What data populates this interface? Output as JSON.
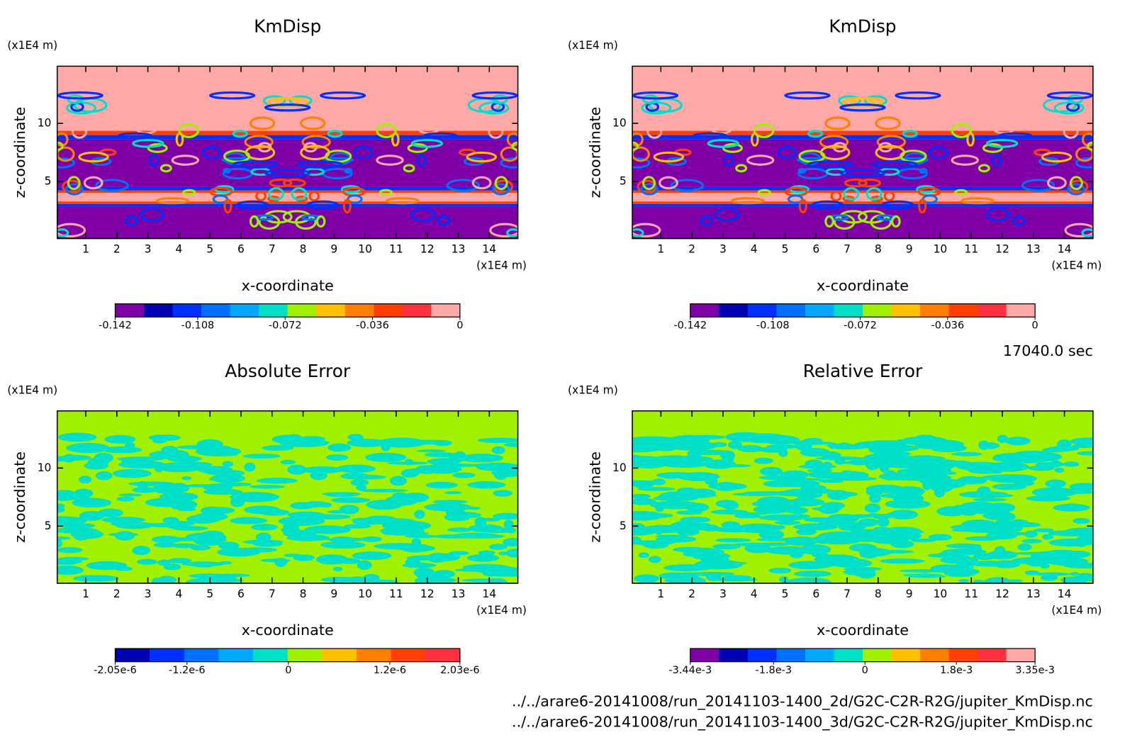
{
  "chart_data": [
    {
      "type": "contour",
      "title": "KmDisp",
      "xlabel": "x-coordinate",
      "ylabel": "z-coordinate",
      "x_unit": "(x1E4 m)",
      "y_unit": "(x1E4 m)",
      "xlim": [
        0.08,
        14.92
      ],
      "ylim": [
        0.08,
        14.92
      ],
      "xticks": [
        1,
        2,
        3,
        4,
        5,
        6,
        7,
        8,
        9,
        10,
        11,
        12,
        13,
        14
      ],
      "yticks": [
        5,
        10
      ],
      "colorbar": {
        "lim": [
          -0.142,
          0
        ],
        "ticks": [
          -0.142,
          -0.108,
          -0.072,
          -0.036,
          0
        ],
        "colors": [
          "#8000a8",
          "#0000b0",
          "#0030ff",
          "#0070ff",
          "#00a8ff",
          "#00e0c8",
          "#a0f000",
          "#ffc000",
          "#ff8000",
          "#ff4000",
          "#ff3040",
          "#ffa8a8"
        ]
      }
    },
    {
      "type": "contour",
      "title": "KmDisp",
      "xlabel": "x-coordinate",
      "ylabel": "z-coordinate",
      "x_unit": "(x1E4 m)",
      "y_unit": "(x1E4 m)",
      "xlim": [
        0.08,
        14.92
      ],
      "ylim": [
        0.08,
        14.92
      ],
      "xticks": [
        1,
        2,
        3,
        4,
        5,
        6,
        7,
        8,
        9,
        10,
        11,
        12,
        13,
        14
      ],
      "yticks": [
        5,
        10
      ],
      "colorbar": {
        "lim": [
          -0.142,
          0
        ],
        "ticks": [
          -0.142,
          -0.108,
          -0.072,
          -0.036,
          0
        ],
        "colors": [
          "#8000a8",
          "#0000b0",
          "#0030ff",
          "#0070ff",
          "#00a8ff",
          "#00e0c8",
          "#a0f000",
          "#ffc000",
          "#ff8000",
          "#ff4000",
          "#ff3040",
          "#ffa8a8"
        ]
      }
    },
    {
      "type": "contour",
      "title": "Absolute Error",
      "xlabel": "x-coordinate",
      "ylabel": "z-coordinate",
      "x_unit": "(x1E4 m)",
      "y_unit": "(x1E4 m)",
      "xlim": [
        0.08,
        14.92
      ],
      "ylim": [
        0.08,
        14.92
      ],
      "xticks": [
        1,
        2,
        3,
        4,
        5,
        6,
        7,
        8,
        9,
        10,
        11,
        12,
        13,
        14
      ],
      "yticks": [
        5,
        10
      ],
      "colorbar": {
        "lim": [
          -2.05e-06,
          2.03e-06
        ],
        "ticks": [
          {
            "value": -2.05e-06,
            "label": "-2.05e-6"
          },
          {
            "value": -1.2e-06,
            "label": "-1.2e-6"
          },
          0,
          {
            "value": 1.2e-06,
            "label": "1.2e-6"
          },
          {
            "value": 2.03e-06,
            "label": "2.03e-6"
          }
        ],
        "colors": [
          "#0000b0",
          "#0030ff",
          "#0070ff",
          "#00a8ff",
          "#00e0c8",
          "#a0f000",
          "#ffc000",
          "#ff8000",
          "#ff4000",
          "#ff3040"
        ]
      }
    },
    {
      "type": "contour",
      "title": "Relative Error",
      "xlabel": "x-coordinate",
      "ylabel": "z-coordinate",
      "x_unit": "(x1E4 m)",
      "y_unit": "(x1E4 m)",
      "xlim": [
        0.08,
        14.92
      ],
      "ylim": [
        0.08,
        14.92
      ],
      "xticks": [
        1,
        2,
        3,
        4,
        5,
        6,
        7,
        8,
        9,
        10,
        11,
        12,
        13,
        14
      ],
      "yticks": [
        5,
        10
      ],
      "colorbar": {
        "lim": [
          -0.00344,
          0.00335
        ],
        "ticks": [
          {
            "value": -0.00344,
            "label": "-3.44e-3"
          },
          {
            "value": -0.0018,
            "label": "-1.8e-3"
          },
          0,
          {
            "value": 0.0018,
            "label": "1.8e-3"
          },
          {
            "value": 0.00335,
            "label": "3.35e-3"
          }
        ],
        "colors": [
          "#8000a8",
          "#0000b0",
          "#0030ff",
          "#0070ff",
          "#00a8ff",
          "#00e0c8",
          "#a0f000",
          "#ffc000",
          "#ff8000",
          "#ff4000",
          "#ff3040",
          "#ffa8a8"
        ]
      }
    }
  ],
  "time_label": "17040.0 sec",
  "files": [
    "../../arare6-20141008/run_20141103-1400_2d/G2C-C2R-R2G/jupiter_KmDisp.nc",
    "../../arare6-20141008/run_20141103-1400_3d/G2C-C2R-R2G/jupiter_KmDisp.nc"
  ]
}
